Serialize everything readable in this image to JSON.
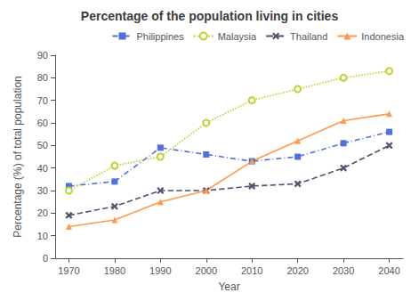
{
  "chart_data": {
    "type": "line",
    "title": "Percentage of the population living in cities",
    "xlabel": "Year",
    "ylabel": "Percentage (%) of total population",
    "x": [
      1970,
      1980,
      1990,
      2000,
      2010,
      2020,
      2030,
      2040
    ],
    "series": [
      {
        "name": "Philippines",
        "values": [
          32,
          34,
          49,
          46,
          43,
          45,
          51,
          56
        ],
        "marker": "square",
        "line_style": "dashdot"
      },
      {
        "name": "Malaysia",
        "values": [
          30,
          41,
          45,
          60,
          70,
          75,
          80,
          83
        ],
        "marker": "circle",
        "line_style": "dotted"
      },
      {
        "name": "Thailand",
        "values": [
          19,
          23,
          30,
          30,
          32,
          33,
          40,
          50
        ],
        "marker": "x",
        "line_style": "dashed"
      },
      {
        "name": "Indonesia",
        "values": [
          14,
          17,
          25,
          30,
          43,
          52,
          61,
          64
        ],
        "marker": "triangle",
        "line_style": "solid"
      }
    ],
    "xlim": [
      1967,
      2043
    ],
    "xticks": [
      1970,
      1980,
      1990,
      2000,
      2010,
      2020,
      2030,
      2040
    ],
    "ylim": [
      0,
      90
    ],
    "yticks": [
      0,
      10,
      20,
      30,
      40,
      50,
      60,
      70,
      80,
      90
    ],
    "grid": false,
    "legend": "upper right"
  }
}
